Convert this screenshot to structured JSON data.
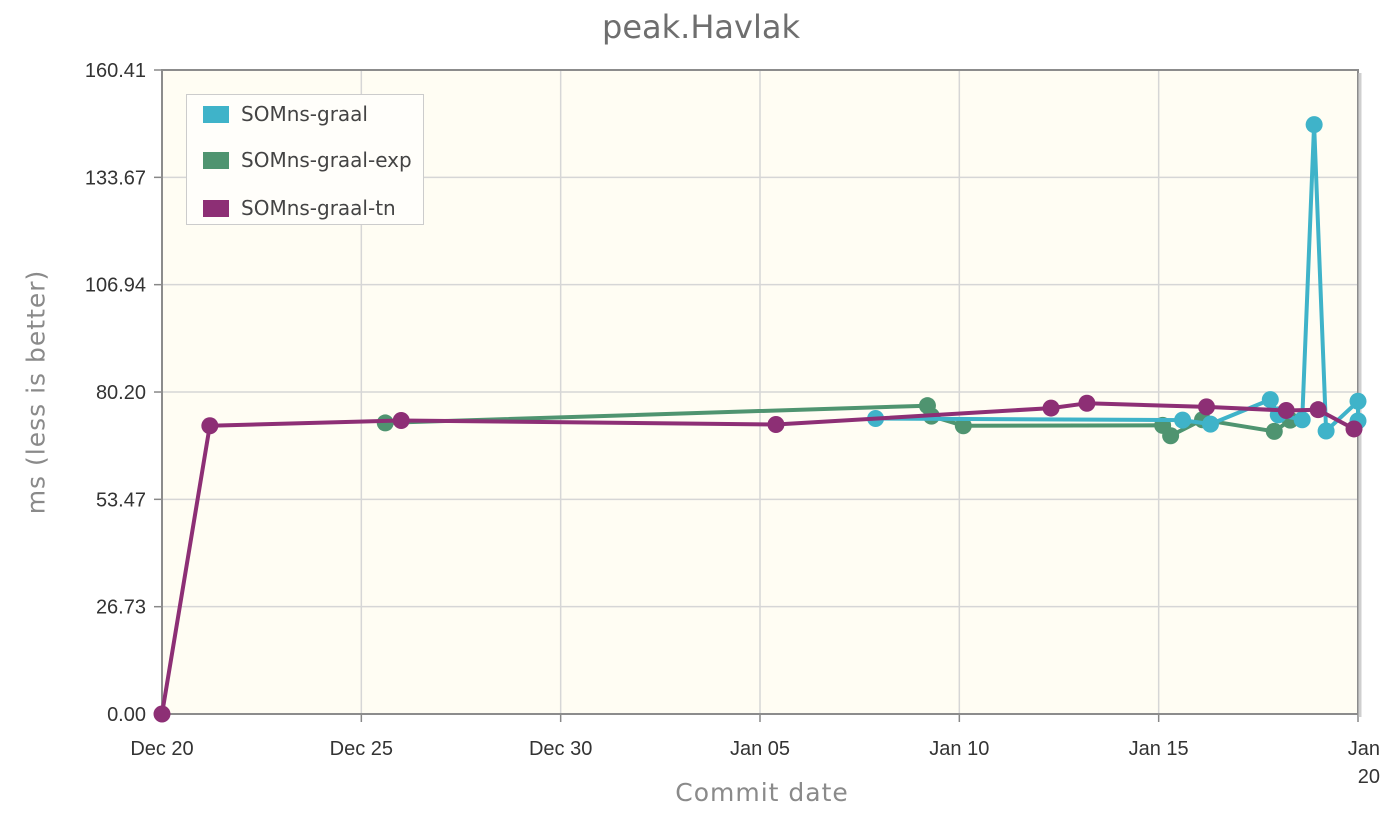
{
  "chart_data": {
    "type": "line",
    "title": "peak.Havlak",
    "xlabel": "Commit date",
    "ylabel": "ms (less is better)",
    "ylim": [
      0,
      160.41
    ],
    "yticks": [
      "0.00",
      "26.73",
      "53.47",
      "80.20",
      "106.94",
      "133.67",
      "160.41"
    ],
    "xticks": [
      {
        "label": "Dec 20",
        "day": 0
      },
      {
        "label": "Dec 25",
        "day": 5
      },
      {
        "label": "Dec 30",
        "day": 10
      },
      {
        "label": "Jan 05",
        "day": 15
      },
      {
        "label": "Jan 10",
        "day": 20
      },
      {
        "label": "Jan 15",
        "day": 25
      },
      {
        "label": "Jan\n20",
        "day": 30
      }
    ],
    "xlim_days": [
      0,
      30
    ],
    "grid": true,
    "legend_position": "top-left",
    "series": [
      {
        "name": "SOMns-graal",
        "color": "#3fb3c9",
        "points": [
          [
            17.9,
            73.6
          ],
          [
            25.6,
            73.2
          ],
          [
            26.3,
            72.2
          ],
          [
            27.8,
            78.3
          ],
          [
            28.0,
            74.5
          ],
          [
            28.6,
            73.3
          ],
          [
            28.9,
            146.8
          ],
          [
            29.2,
            70.5
          ],
          [
            30.0,
            77.9
          ],
          [
            30.0,
            73.0
          ]
        ]
      },
      {
        "name": "SOMns-graal-exp",
        "color": "#4f9470",
        "points": [
          [
            5.6,
            72.5
          ],
          [
            19.2,
            76.8
          ],
          [
            19.3,
            74.2
          ],
          [
            20.1,
            71.8
          ],
          [
            25.1,
            71.9
          ],
          [
            25.3,
            69.3
          ],
          [
            26.1,
            73.3
          ],
          [
            27.9,
            70.4
          ],
          [
            28.3,
            73.2
          ]
        ]
      },
      {
        "name": "SOMns-graal-tn",
        "color": "#8d2f75",
        "points": [
          [
            0.0,
            0.0
          ],
          [
            1.2,
            71.8
          ],
          [
            6.0,
            73.1
          ],
          [
            15.4,
            72.1
          ],
          [
            22.3,
            76.2
          ],
          [
            23.2,
            77.4
          ],
          [
            26.2,
            76.5
          ],
          [
            28.2,
            75.6
          ],
          [
            29.0,
            75.8
          ],
          [
            29.9,
            71.0
          ]
        ]
      }
    ]
  }
}
